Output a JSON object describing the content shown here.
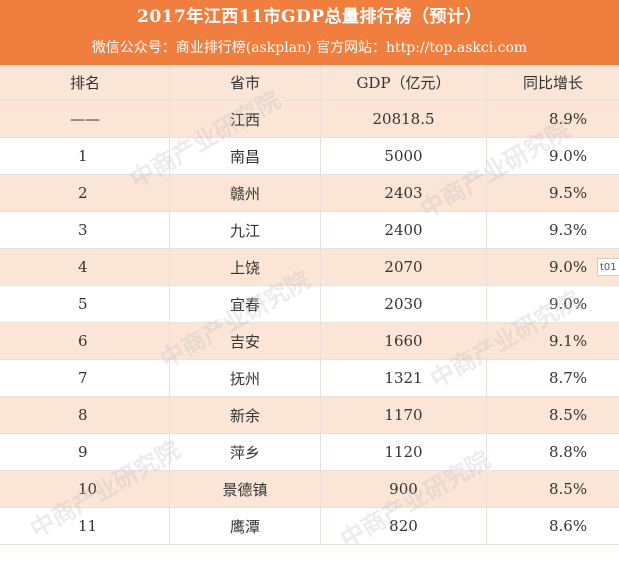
{
  "header": {
    "title": "2017年江西11市GDP总量排行榜（预计）",
    "subtitle": "微信公众号：商业排行榜(askplan)   官方网站：http://top.askci.com"
  },
  "table": {
    "columns": [
      "排名",
      "省市",
      "GDP（亿元）",
      "同比增长"
    ],
    "rows": [
      {
        "rank": "——",
        "city": "江西",
        "gdp": "20818.5",
        "growth": "8.9%"
      },
      {
        "rank": "1",
        "city": "南昌",
        "gdp": "5000",
        "growth": "9.0%"
      },
      {
        "rank": "2",
        "city": "赣州",
        "gdp": "2403",
        "growth": "9.5%"
      },
      {
        "rank": "3",
        "city": "九江",
        "gdp": "2400",
        "growth": "9.3%"
      },
      {
        "rank": "4",
        "city": "上饶",
        "gdp": "2070",
        "growth": "9.0%"
      },
      {
        "rank": "5",
        "city": "宜春",
        "gdp": "2030",
        "growth": "9.0%"
      },
      {
        "rank": "6",
        "city": "吉安",
        "gdp": "1660",
        "growth": "9.1%"
      },
      {
        "rank": "7",
        "city": "抚州",
        "gdp": "1321",
        "growth": "8.7%"
      },
      {
        "rank": "8",
        "city": "新余",
        "gdp": "1170",
        "growth": "8.5%"
      },
      {
        "rank": "9",
        "city": "萍乡",
        "gdp": "1120",
        "growth": "8.8%"
      },
      {
        "rank": "10",
        "city": "景德镇",
        "gdp": "900",
        "growth": "8.5%"
      },
      {
        "rank": "11",
        "city": "鹰潭",
        "gdp": "820",
        "growth": "8.6%"
      }
    ]
  },
  "watermark": {
    "text": "中商产业研究院",
    "url": "www.askci.com"
  },
  "side_tab": {
    "label": "t01"
  },
  "colors": {
    "header_bg": "#f07e3e",
    "stripe_bg": "#fbe5d6",
    "header_text": "#ffffff"
  }
}
